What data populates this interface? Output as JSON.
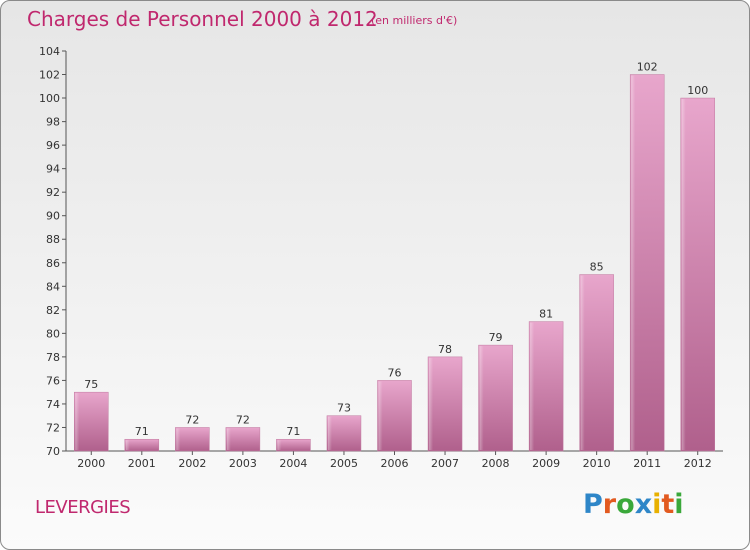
{
  "header": {
    "title": "Charges de Personnel 2000 à 2012",
    "subtitle": "(en milliers d'€)"
  },
  "footer": {
    "place": "LEVERGIES",
    "logo_letters": [
      {
        "ch": "P",
        "color": "#2e86c8"
      },
      {
        "ch": "r",
        "color": "#e25a20"
      },
      {
        "ch": "o",
        "color": "#3aa83a"
      },
      {
        "ch": "x",
        "color": "#2e86c8"
      },
      {
        "ch": "i",
        "color": "#e8b000"
      },
      {
        "ch": "t",
        "color": "#e25a20"
      },
      {
        "ch": "i",
        "color": "#3aa83a"
      }
    ]
  },
  "colors": {
    "title": "#c0286e",
    "bar_light": "#e8a6cc",
    "bar_dark": "#b0608c",
    "axis": "#555555"
  },
  "chart_data": {
    "type": "bar",
    "title": "Charges de Personnel 2000 à 2012",
    "subtitle": "(en milliers d'€)",
    "categories": [
      "2000",
      "2001",
      "2002",
      "2003",
      "2004",
      "2005",
      "2006",
      "2007",
      "2008",
      "2009",
      "2010",
      "2011",
      "2012"
    ],
    "values": [
      75,
      71,
      72,
      72,
      71,
      73,
      76,
      78,
      79,
      81,
      85,
      102,
      100
    ],
    "ylim": [
      70,
      104
    ],
    "ytick_step": 2,
    "grid": false,
    "xlabel": "",
    "ylabel": ""
  }
}
